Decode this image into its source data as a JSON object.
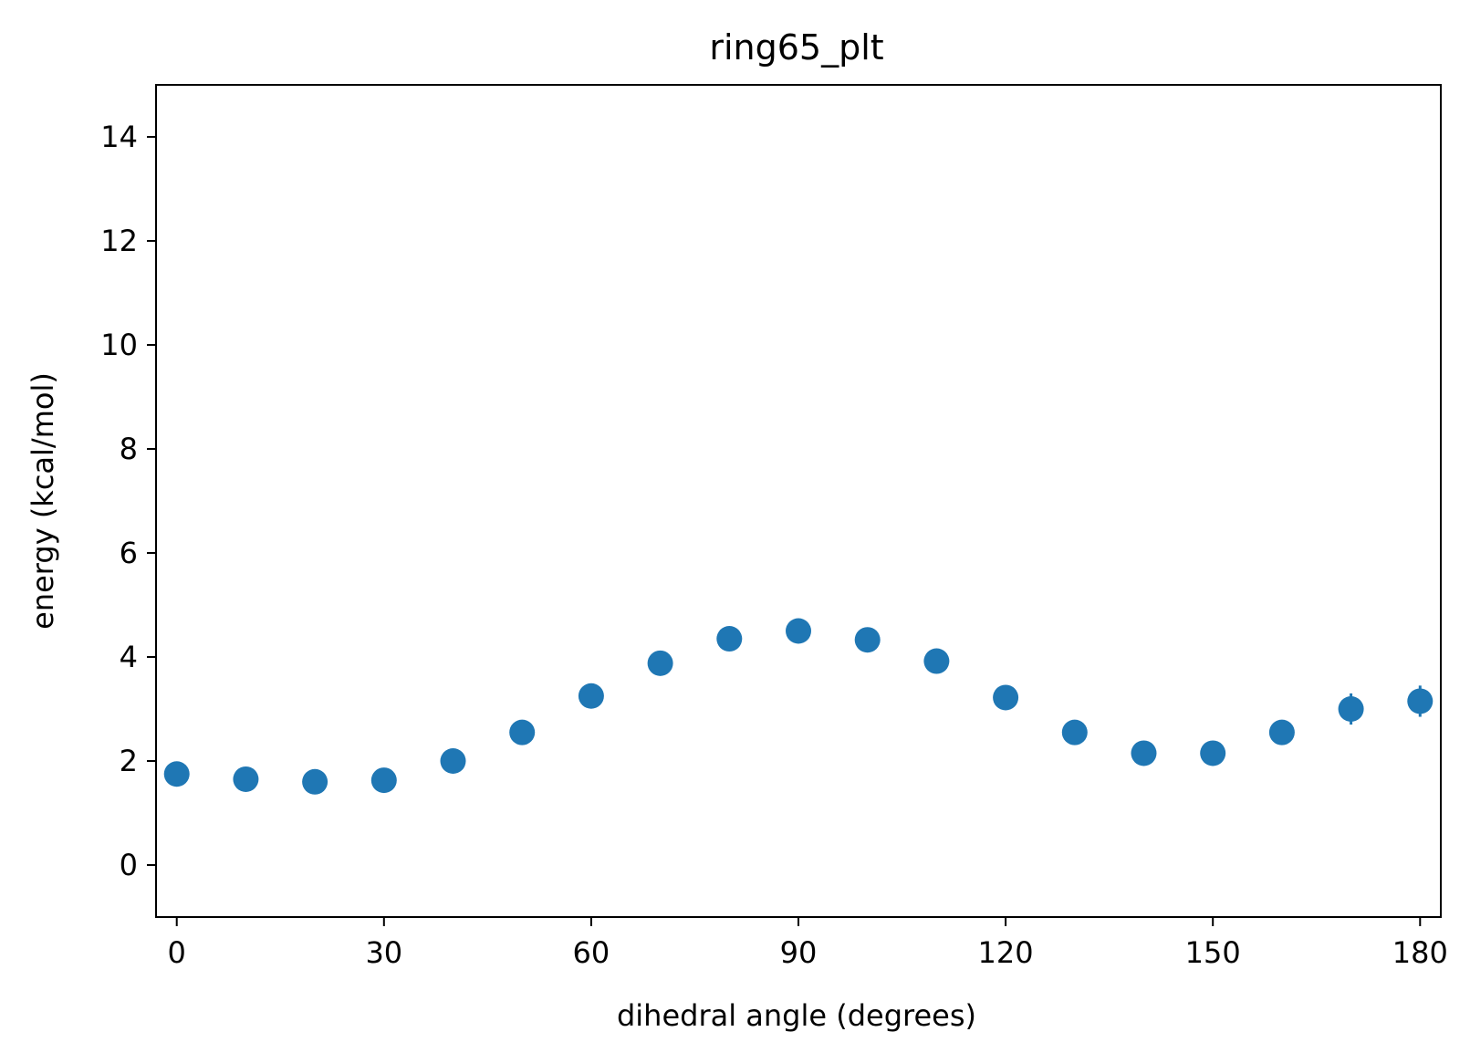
{
  "chart_data": {
    "type": "scatter",
    "title": "ring65_plt",
    "xlabel": "dihedral angle (degrees)",
    "ylabel": "energy (kcal/mol)",
    "xlim": [
      -3,
      183
    ],
    "ylim": [
      -1,
      15
    ],
    "xticks": [
      0,
      30,
      60,
      90,
      120,
      150,
      180
    ],
    "yticks": [
      0,
      2,
      4,
      6,
      8,
      10,
      12,
      14
    ],
    "grid": false,
    "marker_color": "#1f77b4",
    "series": [
      {
        "x": [
          0,
          10,
          20,
          30,
          40,
          50,
          60,
          70,
          80,
          90,
          100,
          110,
          120,
          130,
          140,
          150,
          160,
          170,
          180
        ],
        "y": [
          1.75,
          1.65,
          1.6,
          1.63,
          2.0,
          2.55,
          3.25,
          3.88,
          4.35,
          4.5,
          4.33,
          3.92,
          3.22,
          2.55,
          2.15,
          2.15,
          2.55,
          3.0,
          3.15
        ],
        "yerr": [
          0.05,
          0.05,
          0.05,
          0.05,
          0.05,
          0.05,
          0.08,
          0.08,
          0.1,
          0.2,
          0.2,
          0.1,
          0.08,
          0.08,
          0.05,
          0.05,
          0.05,
          0.3,
          0.3
        ]
      }
    ]
  }
}
